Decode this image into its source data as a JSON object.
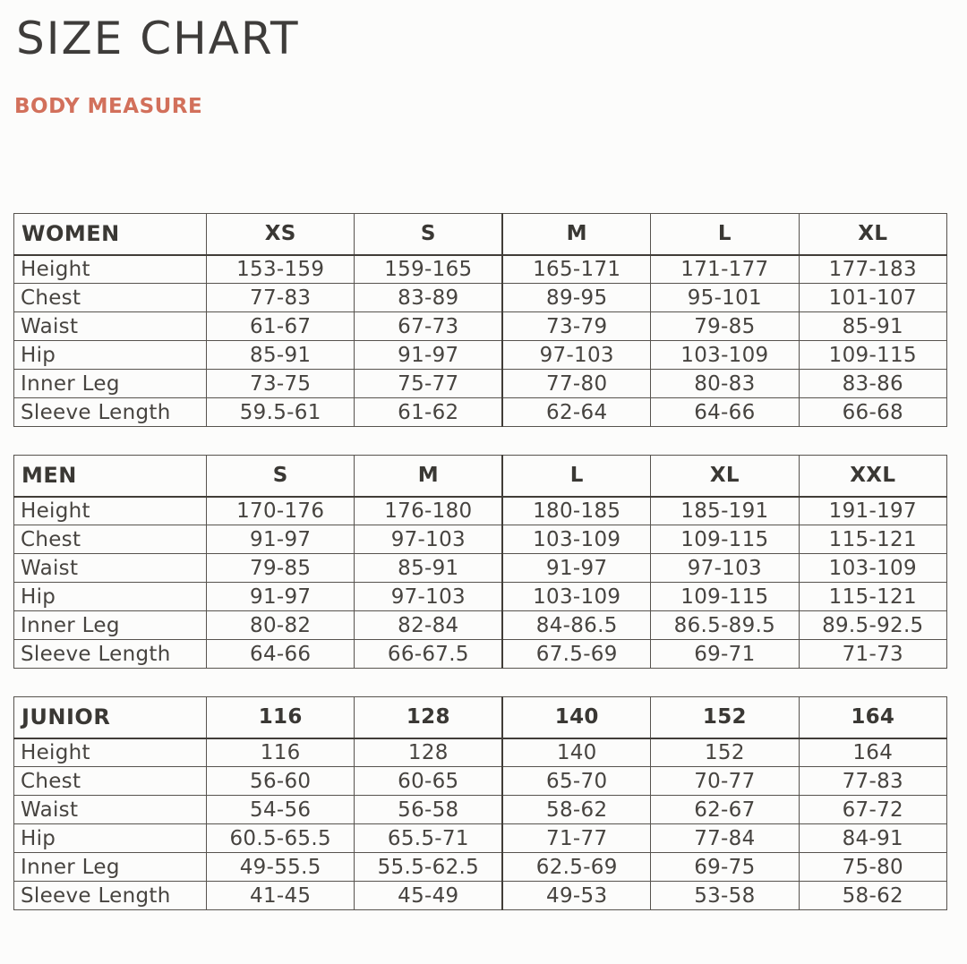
{
  "page": {
    "title": "SIZE CHART",
    "subtitle": "BODY MEASURE"
  },
  "colors": {
    "title": "#3e3c3a",
    "accent": "#d2705b",
    "table-text": "#474440",
    "border": "#57534e",
    "border-strong": "#413d38",
    "background": "#fcfcfb"
  },
  "measure_labels": [
    "Height",
    "Chest",
    "Waist",
    "Hip",
    "Inner Leg",
    "Sleeve Length"
  ],
  "tables": [
    {
      "group": "WOMEN",
      "sizes": [
        "XS",
        "S",
        "M",
        "L",
        "XL"
      ],
      "rows": [
        {
          "label": "Height",
          "values": [
            "153-159",
            "159-165",
            "165-171",
            "171-177",
            "177-183"
          ]
        },
        {
          "label": "Chest",
          "values": [
            "77-83",
            "83-89",
            "89-95",
            "95-101",
            "101-107"
          ]
        },
        {
          "label": "Waist",
          "values": [
            "61-67",
            "67-73",
            "73-79",
            "79-85",
            "85-91"
          ]
        },
        {
          "label": "Hip",
          "values": [
            "85-91",
            "91-97",
            "97-103",
            "103-109",
            "109-115"
          ]
        },
        {
          "label": "Inner Leg",
          "values": [
            "73-75",
            "75-77",
            "77-80",
            "80-83",
            "83-86"
          ]
        },
        {
          "label": "Sleeve Length",
          "values": [
            "59.5-61",
            "61-62",
            "62-64",
            "64-66",
            "66-68"
          ]
        }
      ]
    },
    {
      "group": "MEN",
      "sizes": [
        "S",
        "M",
        "L",
        "XL",
        "XXL"
      ],
      "rows": [
        {
          "label": "Height",
          "values": [
            "170-176",
            "176-180",
            "180-185",
            "185-191",
            "191-197"
          ]
        },
        {
          "label": "Chest",
          "values": [
            "91-97",
            "97-103",
            "103-109",
            "109-115",
            "115-121"
          ]
        },
        {
          "label": "Waist",
          "values": [
            "79-85",
            "85-91",
            "91-97",
            "97-103",
            "103-109"
          ]
        },
        {
          "label": "Hip",
          "values": [
            "91-97",
            "97-103",
            "103-109",
            "109-115",
            "115-121"
          ]
        },
        {
          "label": "Inner Leg",
          "values": [
            "80-82",
            "82-84",
            "84-86.5",
            "86.5-89.5",
            "89.5-92.5"
          ]
        },
        {
          "label": "Sleeve Length",
          "values": [
            "64-66",
            "66-67.5",
            "67.5-69",
            "69-71",
            "71-73"
          ]
        }
      ]
    },
    {
      "group": "JUNIOR",
      "sizes": [
        "116",
        "128",
        "140",
        "152",
        "164"
      ],
      "rows": [
        {
          "label": "Height",
          "values": [
            "116",
            "128",
            "140",
            "152",
            "164"
          ]
        },
        {
          "label": "Chest",
          "values": [
            "56-60",
            "60-65",
            "65-70",
            "70-77",
            "77-83"
          ]
        },
        {
          "label": "Waist",
          "values": [
            "54-56",
            "56-58",
            "58-62",
            "62-67",
            "67-72"
          ]
        },
        {
          "label": "Hip",
          "values": [
            "60.5-65.5",
            "65.5-71",
            "71-77",
            "77-84",
            "84-91"
          ]
        },
        {
          "label": "Inner Leg",
          "values": [
            "49-55.5",
            "55.5-62.5",
            "62.5-69",
            "69-75",
            "75-80"
          ]
        },
        {
          "label": "Sleeve Length",
          "values": [
            "41-45",
            "45-49",
            "49-53",
            "53-58",
            "58-62"
          ]
        }
      ]
    }
  ]
}
